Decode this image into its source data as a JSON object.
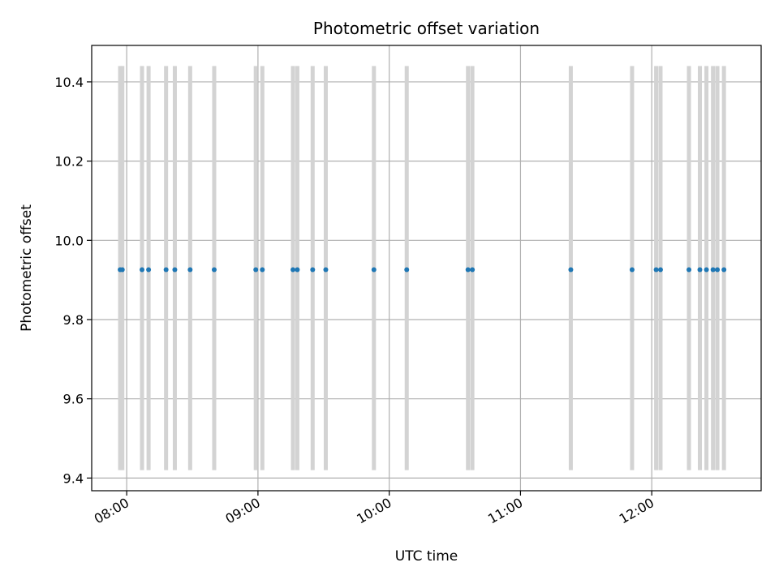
{
  "chart_data": {
    "type": "scatter",
    "title": "Photometric offset variation",
    "xlabel": "UTC time",
    "ylabel": "Photometric offset",
    "x_unit": "UTC HH:MM",
    "xlim": [
      "07:44",
      "12:50"
    ],
    "ylim": [
      9.368,
      10.492
    ],
    "x_ticks": [
      "08:00",
      "09:00",
      "10:00",
      "11:00",
      "12:00"
    ],
    "y_ticks": [
      9.4,
      9.6,
      9.8,
      10.0,
      10.2,
      10.4
    ],
    "y_tick_labels": [
      "9.4",
      "9.6",
      "9.8",
      "10.0",
      "10.2",
      "10.4"
    ],
    "grid": true,
    "legend": "none",
    "band_color": "#d3d3d3",
    "point_color": "#1f77b4",
    "band_y_range": [
      9.42,
      10.44
    ],
    "points": [
      {
        "t": "07:57",
        "y": 9.926
      },
      {
        "t": "07:58",
        "y": 9.926
      },
      {
        "t": "08:07",
        "y": 9.926
      },
      {
        "t": "08:10",
        "y": 9.926
      },
      {
        "t": "08:18",
        "y": 9.926
      },
      {
        "t": "08:22",
        "y": 9.926
      },
      {
        "t": "08:29",
        "y": 9.926
      },
      {
        "t": "08:40",
        "y": 9.926
      },
      {
        "t": "08:59",
        "y": 9.926
      },
      {
        "t": "09:02",
        "y": 9.926
      },
      {
        "t": "09:16",
        "y": 9.926
      },
      {
        "t": "09:18",
        "y": 9.926
      },
      {
        "t": "09:25",
        "y": 9.926
      },
      {
        "t": "09:31",
        "y": 9.926
      },
      {
        "t": "09:53",
        "y": 9.926
      },
      {
        "t": "10:08",
        "y": 9.926
      },
      {
        "t": "10:36",
        "y": 9.926
      },
      {
        "t": "10:38",
        "y": 9.926
      },
      {
        "t": "11:23",
        "y": 9.926
      },
      {
        "t": "11:51",
        "y": 9.926
      },
      {
        "t": "12:02",
        "y": 9.926
      },
      {
        "t": "12:04",
        "y": 9.926
      },
      {
        "t": "12:17",
        "y": 9.926
      },
      {
        "t": "12:22",
        "y": 9.926
      },
      {
        "t": "12:25",
        "y": 9.926
      },
      {
        "t": "12:28",
        "y": 9.926
      },
      {
        "t": "12:30",
        "y": 9.926
      },
      {
        "t": "12:33",
        "y": 9.926
      }
    ]
  }
}
